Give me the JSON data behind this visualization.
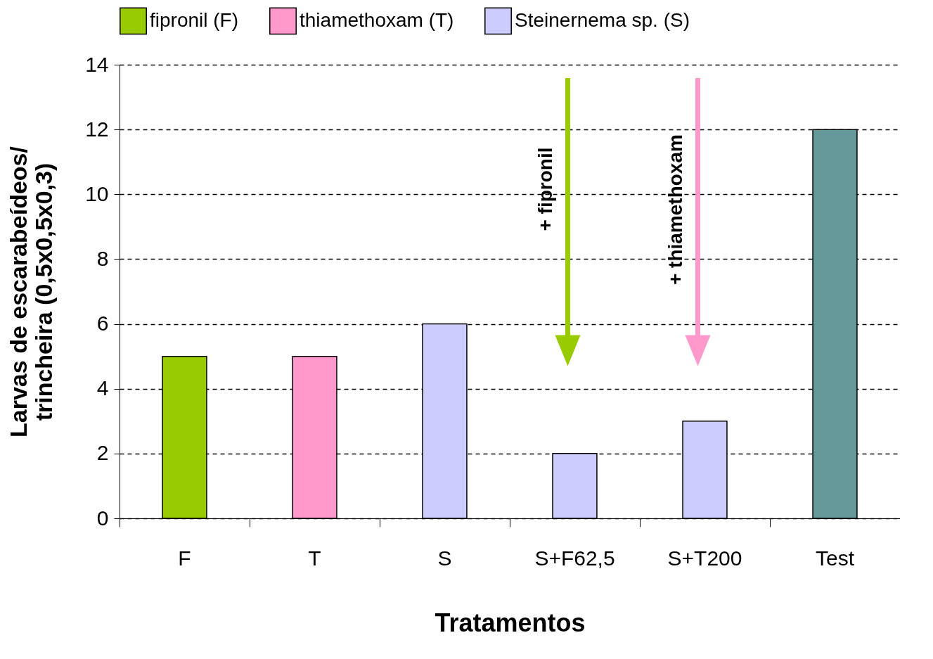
{
  "chart_data": {
    "type": "bar",
    "xlabel": "Tratamentos",
    "ylabel": "Larvas de escarabeídeos/\ntrincheira (0,5x0,5x0,3)",
    "categories": [
      "F",
      "T",
      "S",
      "S+F62,5",
      "S+T200",
      "Test"
    ],
    "series": [
      {
        "name": "fipronil (F)",
        "color": "#99cc00",
        "values": [
          5,
          null,
          null,
          null,
          null,
          null
        ]
      },
      {
        "name": "thiamethoxam (T)",
        "color": "#ff99cc",
        "values": [
          null,
          5,
          null,
          null,
          null,
          null
        ]
      },
      {
        "name": "Steinernema sp. (S)",
        "color": "#ccccff",
        "values": [
          null,
          null,
          6,
          2,
          3,
          null
        ]
      },
      {
        "color": "#669999",
        "values": [
          null,
          null,
          null,
          null,
          null,
          12
        ]
      }
    ],
    "ylim": [
      0,
      14
    ],
    "yticks": [
      0,
      2,
      4,
      6,
      8,
      10,
      12,
      14
    ],
    "grid": "y",
    "legend": "top",
    "annotations": [
      "+ fipronil",
      "+ thiamethoxam"
    ]
  }
}
